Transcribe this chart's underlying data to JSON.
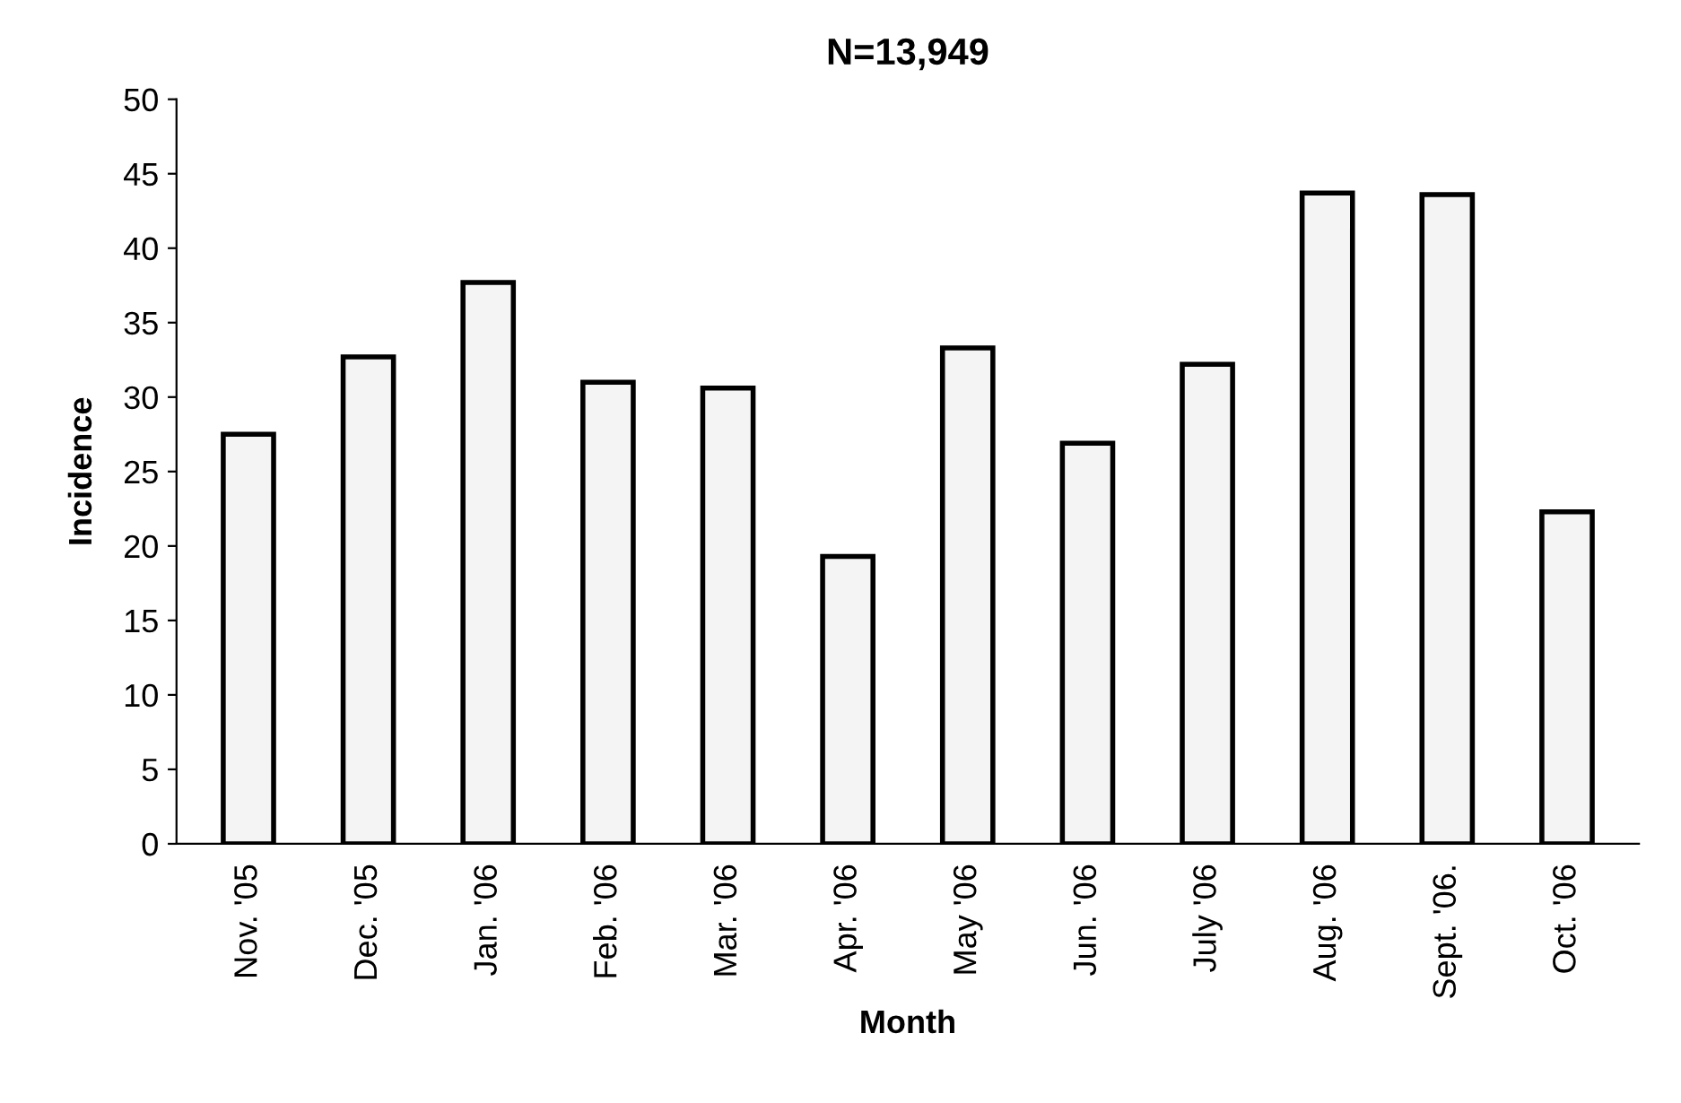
{
  "chart_data": {
    "type": "bar",
    "title": "N=13,949",
    "xlabel": "Month",
    "ylabel": "Incidence",
    "categories": [
      "Nov. '05",
      "Dec. '05",
      "Jan. '06",
      "Feb. '06",
      "Mar. '06",
      "Apr. '06",
      "May '06",
      "Jun. '06",
      "July '06",
      "Aug. '06",
      "Sept. '06.",
      "Oct. '06"
    ],
    "values": [
      27.5,
      32.7,
      37.7,
      31.0,
      30.6,
      19.3,
      33.3,
      26.9,
      32.2,
      43.7,
      43.6,
      22.3
    ],
    "color": "#f4f4f4",
    "ylim": [
      0,
      50
    ],
    "yticks": [
      0,
      5,
      10,
      15,
      20,
      25,
      30,
      35,
      40,
      45,
      50
    ],
    "grid": false
  }
}
